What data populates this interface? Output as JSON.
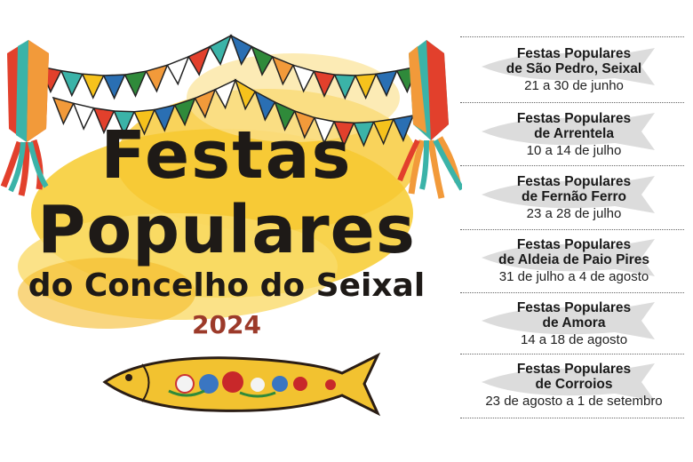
{
  "poster": {
    "title_line1": "Festas",
    "title_line2": "Populares",
    "subtitle": "do Concelho do Seixal",
    "year": "2024",
    "colors": {
      "watercolor": "#f6c21c",
      "year": "#9c3a2a",
      "fish": "#f2c230",
      "text": "#1e1a17"
    }
  },
  "events": [
    {
      "name_line1": "Festas Populares",
      "name_line2": "de São Pedro, Seixal",
      "dates": "21 a 30 de junho"
    },
    {
      "name_line1": "Festas Populares",
      "name_line2": "de Arrentela",
      "dates": "10 a 14 de julho"
    },
    {
      "name_line1": "Festas Populares",
      "name_line2": "de Fernão Ferro",
      "dates": "23 a 28 de julho"
    },
    {
      "name_line1": "Festas Populares",
      "name_line2": "de Aldeia de Paio Pires",
      "dates": "31 de julho a 4 de agosto"
    },
    {
      "name_line1": "Festas Populares",
      "name_line2": "de Amora",
      "dates": "14 a 18 de agosto"
    },
    {
      "name_line1": "Festas Populares",
      "name_line2": "de Corroios",
      "dates": "23 de agosto a 1 de setembro"
    }
  ]
}
